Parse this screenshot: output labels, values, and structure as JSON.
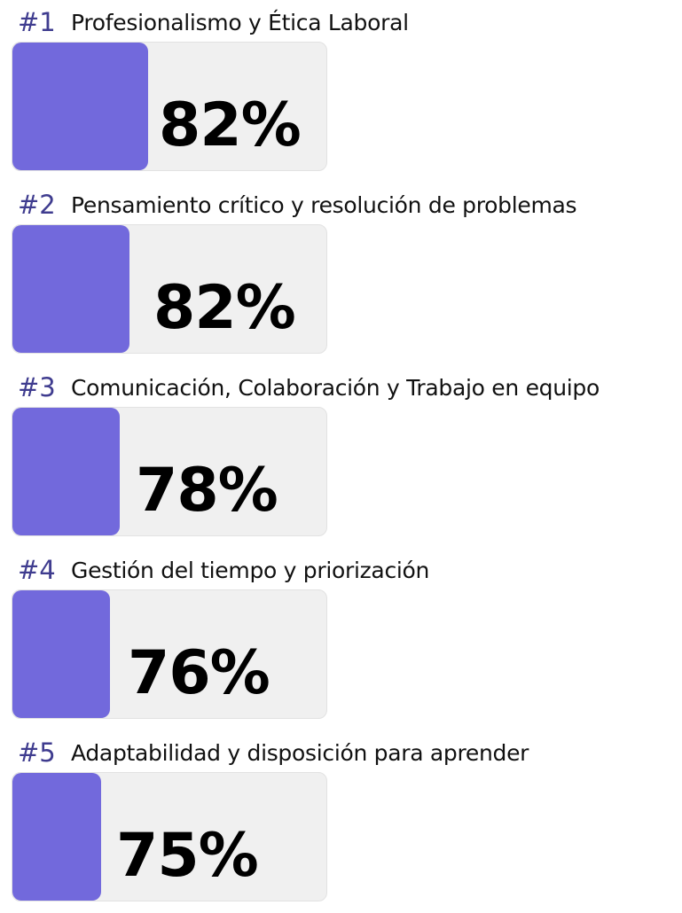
{
  "items": [
    {
      "rank": "#1",
      "title": "Profesionalismo y Ética Laboral",
      "score": "82%"
    },
    {
      "rank": "#2",
      "title": "Pensamiento crítico y resolución de problemas",
      "score": "82%"
    },
    {
      "rank": "#3",
      "title": "Comunicación, Colaboración y Trabajo en equipo",
      "score": "78%"
    },
    {
      "rank": "#4",
      "title": "Gestión del tiempo y priorización",
      "score": "76%"
    },
    {
      "rank": "#5",
      "title": "Adaptabilidad y disposición para aprender",
      "score": "75%"
    }
  ]
}
